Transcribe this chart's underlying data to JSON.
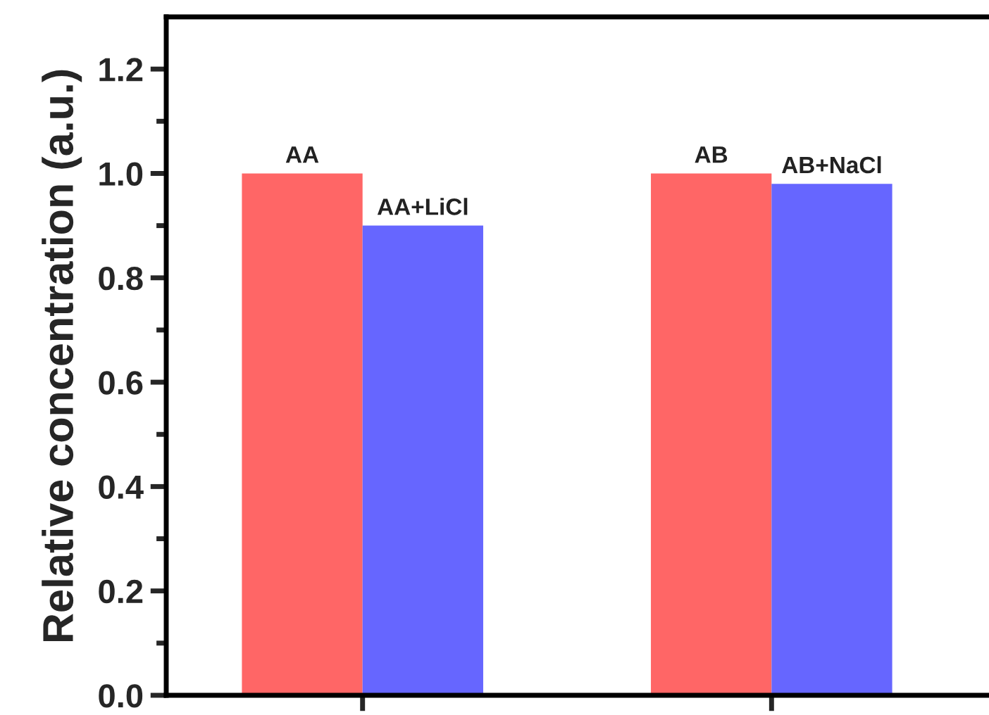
{
  "chart_data": {
    "type": "bar",
    "ylabel": "Relative concentration (a.u.)",
    "categories": [
      null,
      null
    ],
    "series": [
      {
        "color": "#ff6666",
        "values": [
          1.0,
          1.0
        ],
        "value_labels": [
          "AA",
          "AB"
        ]
      },
      {
        "color": "#6666ff",
        "values": [
          0.9,
          0.98
        ],
        "value_labels": [
          "AA+LiCl",
          "AB+NaCl"
        ]
      }
    ],
    "ylim": [
      0,
      1.3
    ],
    "yticks": [
      {
        "value": 0,
        "label": "0.0"
      },
      {
        "value": 0.1,
        "label": null
      },
      {
        "value": 0.2,
        "label": "0.2"
      },
      {
        "value": 0.3,
        "label": null
      },
      {
        "value": 0.4,
        "label": "0.4"
      },
      {
        "value": 0.5,
        "label": null
      },
      {
        "value": 0.6,
        "label": "0.6"
      },
      {
        "value": 0.7,
        "label": null
      },
      {
        "value": 0.8,
        "label": "0.8"
      },
      {
        "value": 0.9,
        "label": null
      },
      {
        "value": 1.0,
        "label": "1.0"
      },
      {
        "value": 1.1,
        "label": null
      },
      {
        "value": 1.2,
        "label": "1.2"
      }
    ],
    "grid": false,
    "legend": false
  }
}
